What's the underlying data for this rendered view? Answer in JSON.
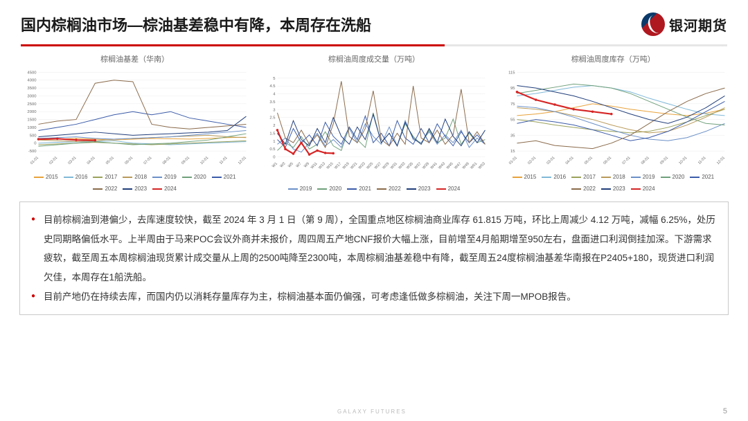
{
  "header": {
    "title": "国内棕榈油市场—棕油基差稳中有降，本周存在洗船",
    "logo_text": "银河期货"
  },
  "colors": {
    "s2015": "#e8a23a",
    "s2016": "#7fb8d8",
    "s2017": "#9aa15a",
    "s2018": "#b89a5a",
    "s2019": "#6a8fc7",
    "s2020": "#6fa07a",
    "s2021": "#3a5aa8",
    "s2022": "#8a6a4a",
    "s2023": "#1f3d7a",
    "s2024": "#d62424"
  },
  "chart1": {
    "title": "棕榈油基差（华南）",
    "ylim": [
      -500,
      4500
    ],
    "yticks": [
      -500,
      0,
      500,
      1000,
      1500,
      2000,
      2500,
      3000,
      3500,
      4000,
      4500
    ],
    "xlabels": [
      "01-01",
      "02-01",
      "03-01",
      "04-01",
      "05-01",
      "06-01",
      "07-01",
      "08-01",
      "09-01",
      "10-01",
      "11-01",
      "12-01"
    ],
    "series": {
      "2015": [
        200,
        250,
        300,
        250,
        200,
        250,
        300,
        280,
        260,
        300,
        350,
        380
      ],
      "2016": [
        0,
        50,
        80,
        100,
        150,
        0,
        -50,
        -100,
        -50,
        0,
        50,
        100
      ],
      "2017": [
        -100,
        -50,
        0,
        50,
        0,
        -50,
        -100,
        -50,
        0,
        50,
        100,
        150
      ],
      "2018": [
        200,
        150,
        100,
        150,
        250,
        300,
        350,
        400,
        450,
        500,
        400,
        350
      ],
      "2019": [
        300,
        350,
        400,
        300,
        250,
        300,
        350,
        400,
        500,
        600,
        700,
        800
      ],
      "2020": [
        -200,
        -100,
        0,
        100,
        0,
        -100,
        -50,
        0,
        100,
        200,
        400,
        600
      ],
      "2021": [
        800,
        1000,
        1200,
        1500,
        1800,
        2000,
        1800,
        2000,
        1600,
        1400,
        1200,
        1000
      ],
      "2022": [
        1200,
        1400,
        1500,
        3800,
        4000,
        3900,
        1200,
        1000,
        900,
        1000,
        1100,
        1200
      ],
      "2023": [
        400,
        500,
        600,
        700,
        600,
        500,
        550,
        600,
        650,
        700,
        800,
        1700
      ],
      "2024": [
        250,
        280,
        200,
        180
      ]
    },
    "legend": [
      "2015",
      "2016",
      "2017",
      "2018",
      "2019",
      "2020",
      "2021",
      "2022",
      "2023",
      "2024"
    ]
  },
  "chart2": {
    "title": "棕榈油周度成交量（万吨）",
    "ylim": [
      0,
      5.0
    ],
    "yticks": [
      0,
      0.5,
      1.0,
      1.5,
      2.0,
      2.5,
      3.0,
      3.5,
      4.0,
      4.5,
      5.0
    ],
    "xlabels": [
      "W1",
      "W3",
      "W5",
      "W7",
      "W9",
      "W11",
      "W13",
      "W15",
      "W17",
      "W19",
      "W21",
      "W23",
      "W25",
      "W27",
      "W29",
      "W31",
      "W33",
      "W35",
      "W37",
      "W39",
      "W41",
      "W43",
      "W45",
      "W47",
      "W49",
      "W51",
      "W53"
    ],
    "series": {
      "2019": [
        0.8,
        1.2,
        0.5,
        0.3,
        0.9,
        1.5,
        0.7,
        1.1,
        0.6,
        1.8,
        0.9,
        2.1,
        1.3,
        0.8,
        1.9,
        0.7,
        2.3,
        1.1,
        0.9,
        1.6,
        0.8,
        1.4,
        0.9,
        1.7,
        0.6,
        1.2,
        0.8
      ],
      "2020": [
        0.4,
        0.9,
        0.6,
        1.3,
        0.5,
        0.8,
        1.6,
        0.7,
        0.4,
        1.9,
        1.1,
        0.6,
        2.8,
        0.9,
        1.5,
        0.7,
        2.1,
        1.3,
        0.8,
        1.7,
        0.9,
        1.2,
        2.4,
        0.8,
        1.5,
        0.9,
        1.1
      ],
      "2021": [
        1.1,
        0.6,
        1.8,
        0.9,
        1.4,
        0.7,
        2.2,
        1.3,
        0.8,
        1.9,
        1.1,
        2.6,
        0.9,
        1.5,
        0.7,
        2.3,
        1.2,
        0.8,
        1.8,
        0.9,
        2.1,
        1.3,
        0.7,
        1.6,
        0.9,
        1.4,
        0.8
      ],
      "2022": [
        2.8,
        1.2,
        0.9,
        1.7,
        0.8,
        1.4,
        0.6,
        2.1,
        4.8,
        1.3,
        0.9,
        1.8,
        4.2,
        1.1,
        0.7,
        1.5,
        0.8,
        4.5,
        1.2,
        0.9,
        1.7,
        0.8,
        1.4,
        4.3,
        0.9,
        1.6,
        0.8
      ],
      "2023": [
        1.5,
        0.8,
        2.3,
        1.1,
        0.7,
        1.8,
        0.9,
        2.5,
        1.3,
        0.8,
        1.9,
        1.1,
        2.7,
        0.9,
        1.5,
        0.7,
        2.2,
        1.2,
        0.8,
        1.8,
        0.9,
        2.4,
        1.3,
        0.7,
        1.6,
        0.9,
        1.7
      ],
      "2024": [
        1.7,
        0.5,
        0.2,
        0.9,
        0.15,
        0.4,
        0.25,
        0.23
      ]
    },
    "legend": [
      "2019",
      "2020",
      "2021",
      "2022",
      "2023",
      "2024"
    ]
  },
  "chart3": {
    "title": "棕榈油周度库存（万吨）",
    "ylim": [
      15,
      115
    ],
    "yticks": [
      15,
      35,
      55,
      75,
      95,
      115
    ],
    "xlabels": [
      "01-01",
      "02-01",
      "03-01",
      "04-01",
      "05-01",
      "06-01",
      "07-01",
      "08-01",
      "09-01",
      "10-01",
      "11-01",
      "12-01"
    ],
    "series": {
      "2015": [
        60,
        62,
        65,
        70,
        75,
        72,
        68,
        65,
        62,
        60,
        63,
        68
      ],
      "2016": [
        85,
        88,
        92,
        96,
        98,
        95,
        90,
        82,
        75,
        68,
        62,
        60
      ],
      "2017": [
        55,
        52,
        48,
        45,
        42,
        40,
        38,
        40,
        45,
        52,
        60,
        68
      ],
      "2018": [
        70,
        68,
        65,
        60,
        55,
        48,
        42,
        38,
        40,
        48,
        58,
        70
      ],
      "2019": [
        72,
        70,
        65,
        58,
        50,
        42,
        35,
        30,
        28,
        32,
        40,
        50
      ],
      "2020": [
        88,
        92,
        96,
        100,
        98,
        95,
        88,
        78,
        68,
        58,
        50,
        48
      ],
      "2021": [
        50,
        55,
        52,
        48,
        42,
        35,
        28,
        32,
        40,
        52,
        65,
        78
      ],
      "2022": [
        25,
        28,
        22,
        20,
        18,
        25,
        35,
        50,
        65,
        78,
        88,
        95
      ],
      "2023": [
        98,
        95,
        90,
        85,
        78,
        70,
        62,
        55,
        50,
        58,
        70,
        85
      ],
      "2024": [
        90,
        80,
        74,
        68,
        65,
        62
      ]
    },
    "legend": [
      "2015",
      "2016",
      "2017",
      "2018",
      "2019",
      "2020",
      "2021",
      "2022",
      "2023",
      "2024"
    ]
  },
  "body_text": {
    "bullet1": "目前棕榈油到港偏少，去库速度较快，截至 2024 年 3 月 1 日（第 9 周），全国重点地区棕榈油商业库存 61.815 万吨，环比上周减少 4.12 万吨，减幅 6.25%，处历史同期略偏低水平。上半周由于马来POC会议外商并未报价，周四周五产地CNF报价大幅上涨，目前增至4月船期增至950左右，盘面进口利润倒挂加深。下游需求疲软，截至周五本周棕榈油现货累计成交量从上周的2500吨降至2300吨，本周棕榈油基差稳中有降，截至周五24度棕榈油基差华南报在P2405+180，现货进口利润欠佳，本周存在1船洗船。",
    "bullet2": "目前产地仍在持续去库，而国内仍以消耗存量库存为主，棕榈油基本面仍偏强，可考虑逢低做多棕榈油，关注下周一MPOB报告。"
  },
  "footer": {
    "brand": "GALAXY FUTURES",
    "page": "5"
  }
}
